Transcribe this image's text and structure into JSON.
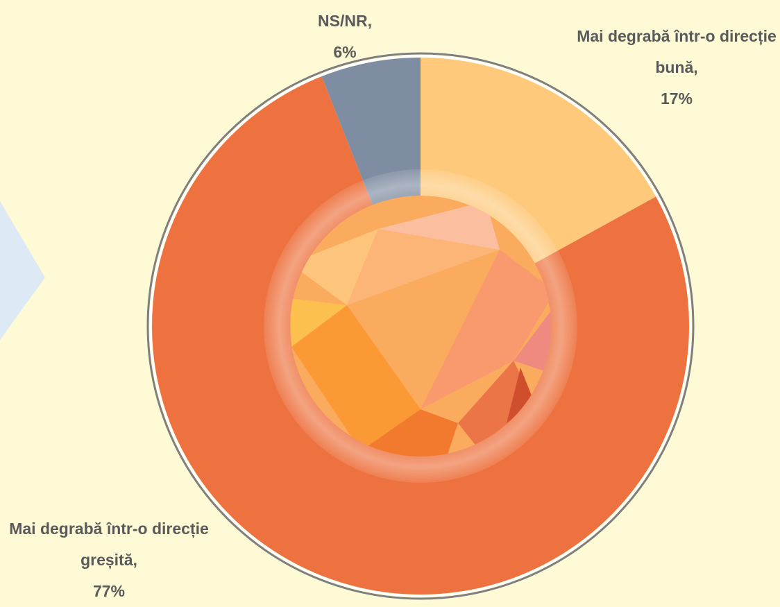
{
  "chart_data": {
    "type": "pie",
    "categories": [
      "Mai degrabă într-o direcție bună,",
      "Mai degrabă într-o direcție greșită,",
      "NS/NR,"
    ],
    "values": [
      17,
      77,
      6
    ],
    "value_labels": [
      "17%",
      "77%",
      "6%"
    ],
    "colors": [
      "#fec97b",
      "#ed723f",
      "#7f8da2"
    ]
  }
}
